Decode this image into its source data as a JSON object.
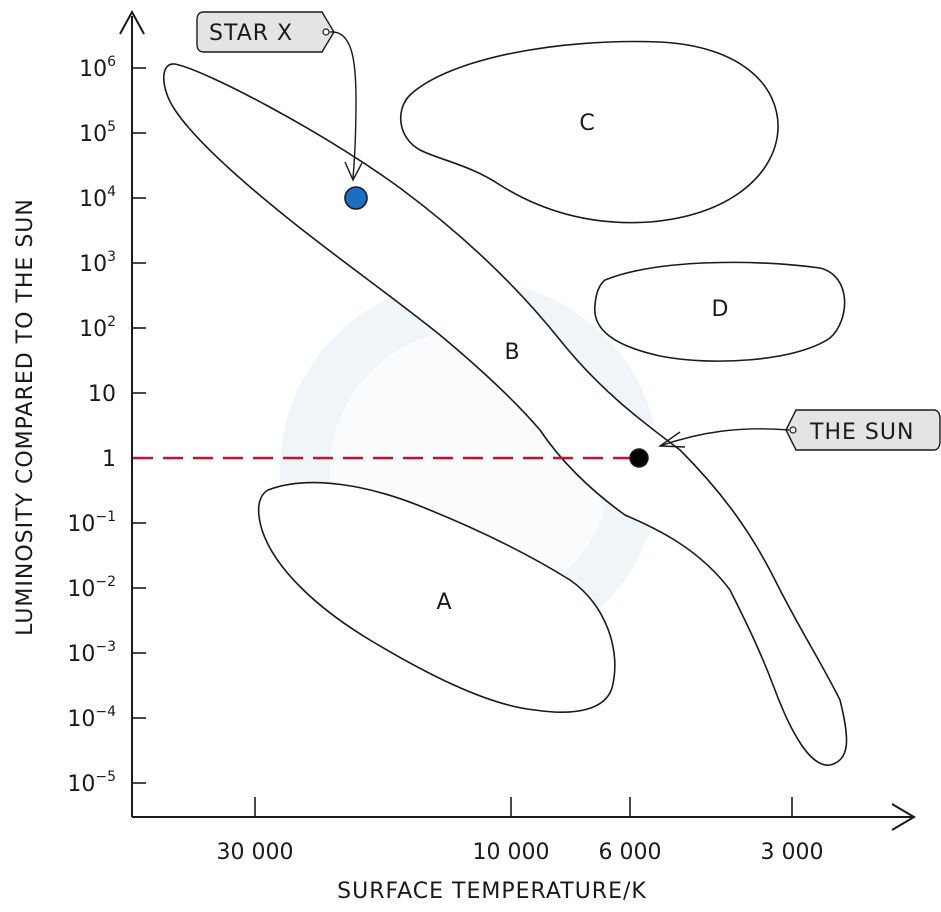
{
  "chart_data": {
    "type": "scatter",
    "xlabel": "SURFACE TEMPERATURE/K",
    "ylabel": "LUMINOSITY COMPARED TO THE SUN",
    "y_scale": "log",
    "x_scale": "reversed",
    "y_ticks": [
      {
        "base": "10",
        "exp": "6"
      },
      {
        "base": "10",
        "exp": "5"
      },
      {
        "base": "10",
        "exp": "4"
      },
      {
        "base": "10",
        "exp": "3"
      },
      {
        "base": "10",
        "exp": "2"
      },
      {
        "base": "10",
        "exp": ""
      },
      {
        "base": "1",
        "exp": ""
      },
      {
        "base": "10",
        "exp": "−1"
      },
      {
        "base": "10",
        "exp": "−2"
      },
      {
        "base": "10",
        "exp": "−3"
      },
      {
        "base": "10",
        "exp": "−4"
      },
      {
        "base": "10",
        "exp": "−5"
      }
    ],
    "x_ticks": [
      "30 000",
      "10 000",
      "6 000",
      "3 000"
    ],
    "regions": [
      {
        "label": "A"
      },
      {
        "label": "B"
      },
      {
        "label": "C"
      },
      {
        "label": "D"
      }
    ],
    "points": [
      {
        "label": "STAR X",
        "temperature": 20000,
        "luminosity": 10000,
        "color": "#1a6fc4"
      },
      {
        "label": "THE SUN",
        "temperature": 6000,
        "luminosity": 1,
        "color": "#000000"
      }
    ],
    "reference_line": {
      "luminosity": 1,
      "color": "#c8102e",
      "style": "dashed"
    }
  }
}
